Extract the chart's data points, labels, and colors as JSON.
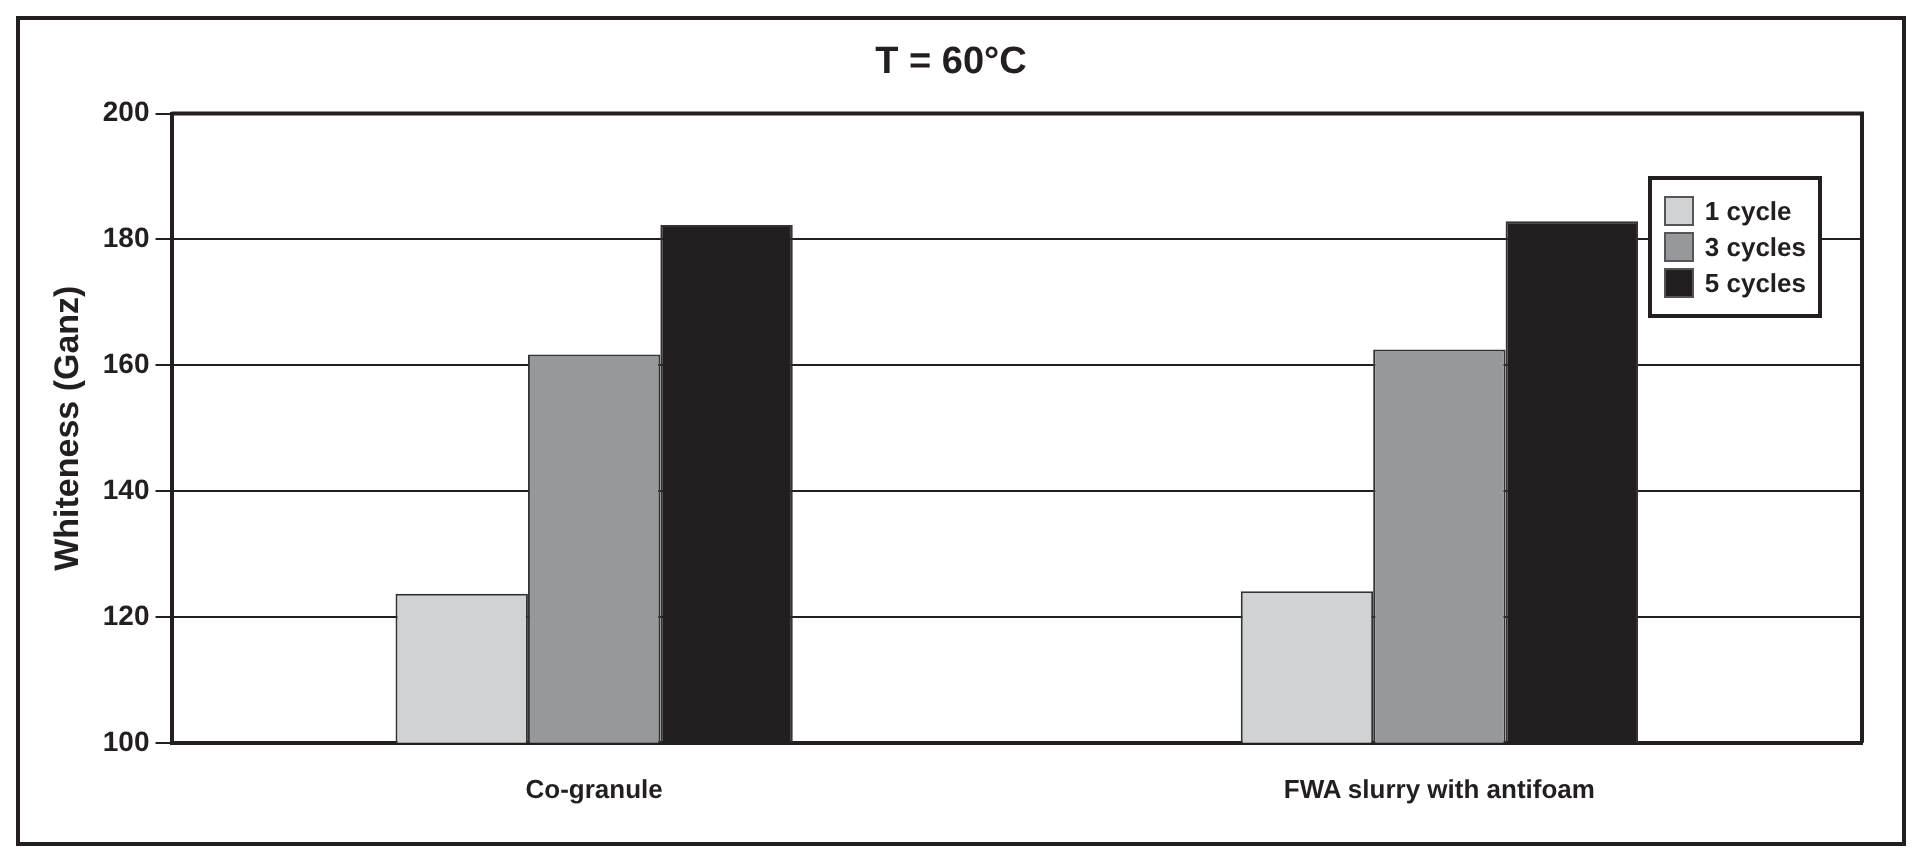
{
  "chart_data": {
    "type": "bar",
    "title": "T = 60°C",
    "ylabel": "Whiteness (Ganz)",
    "categories": [
      "Co-granule",
      "FWA slurry with antifoam"
    ],
    "series": [
      {
        "name": "1 cycle",
        "color": "#d1d2d4",
        "values": [
          123.7,
          124.1
        ]
      },
      {
        "name": "3 cycles",
        "color": "#97989b",
        "values": [
          161.7,
          162.5
        ]
      },
      {
        "name": "5 cycles",
        "color": "#231f20",
        "values": [
          182.3,
          182.9
        ]
      }
    ],
    "ylim": [
      100,
      200
    ],
    "yticks": [
      100,
      120,
      140,
      160,
      180,
      200
    ],
    "grid": "y",
    "legend": "top right"
  }
}
